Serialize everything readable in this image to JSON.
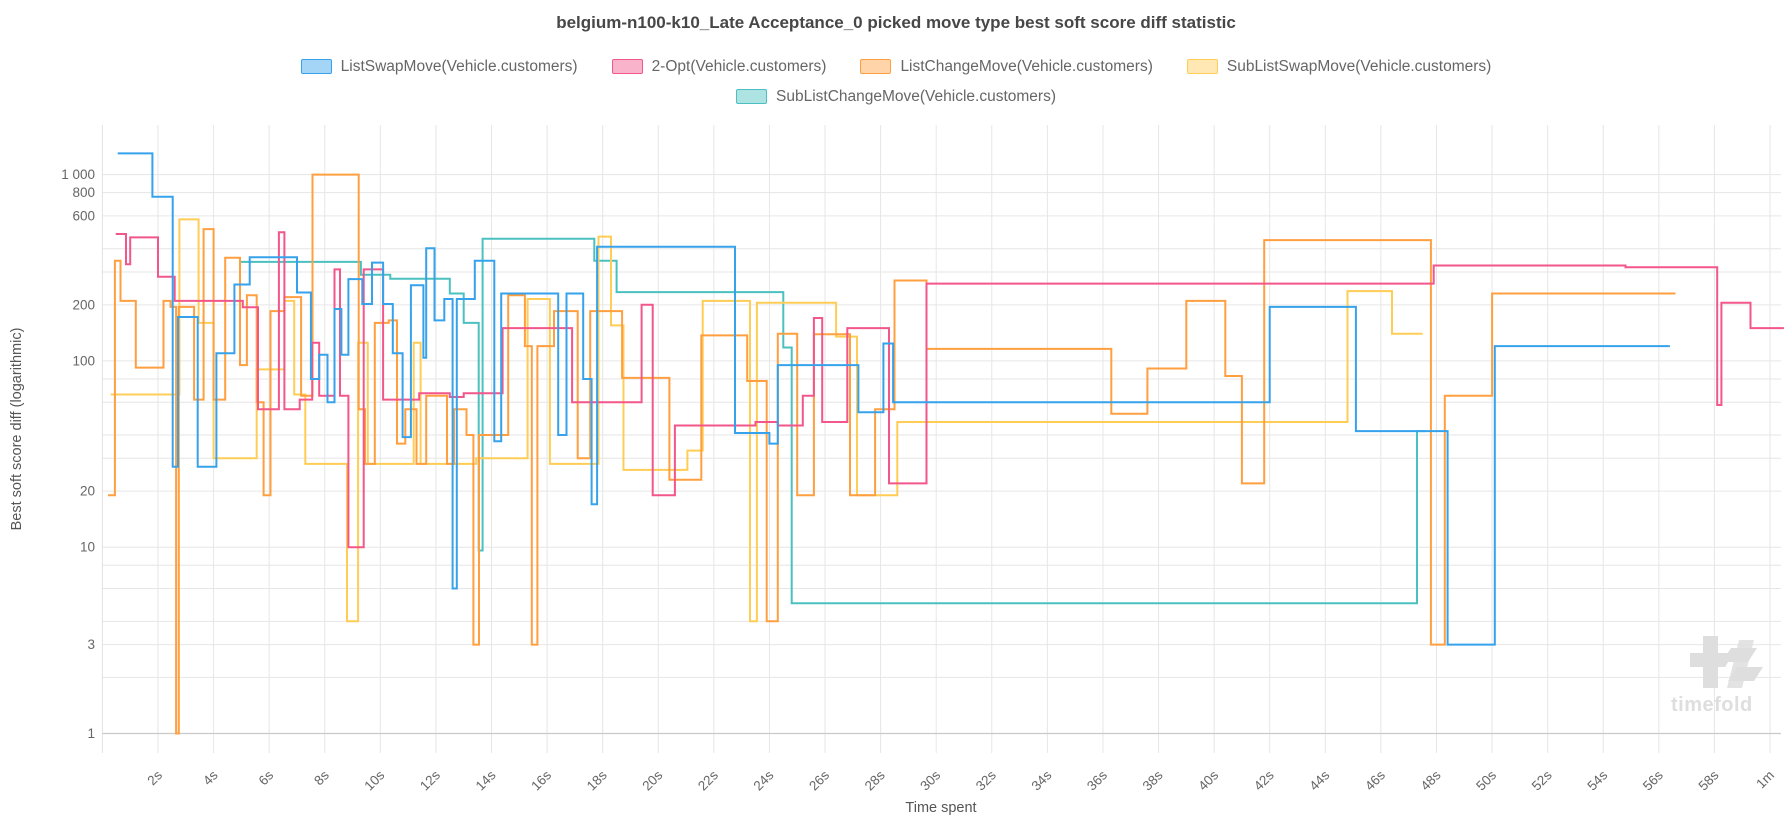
{
  "title": "belgium-n100-k10_Late Acceptance_0 picked move type best soft score diff statistic",
  "watermark": {
    "text": "timefold"
  },
  "axes": {
    "x": {
      "title": "Time spent",
      "ticks": [
        {
          "t": 2,
          "label": "2s"
        },
        {
          "t": 4,
          "label": "4s"
        },
        {
          "t": 6,
          "label": "6s"
        },
        {
          "t": 8,
          "label": "8s"
        },
        {
          "t": 10,
          "label": "10s"
        },
        {
          "t": 12,
          "label": "12s"
        },
        {
          "t": 14,
          "label": "14s"
        },
        {
          "t": 16,
          "label": "16s"
        },
        {
          "t": 18,
          "label": "18s"
        },
        {
          "t": 20,
          "label": "20s"
        },
        {
          "t": 22,
          "label": "22s"
        },
        {
          "t": 24,
          "label": "24s"
        },
        {
          "t": 26,
          "label": "26s"
        },
        {
          "t": 28,
          "label": "28s"
        },
        {
          "t": 30,
          "label": "30s"
        },
        {
          "t": 32,
          "label": "32s"
        },
        {
          "t": 34,
          "label": "34s"
        },
        {
          "t": 36,
          "label": "36s"
        },
        {
          "t": 38,
          "label": "38s"
        },
        {
          "t": 40,
          "label": "40s"
        },
        {
          "t": 42,
          "label": "42s"
        },
        {
          "t": 44,
          "label": "44s"
        },
        {
          "t": 46,
          "label": "46s"
        },
        {
          "t": 48,
          "label": "48s"
        },
        {
          "t": 50,
          "label": "50s"
        },
        {
          "t": 52,
          "label": "52s"
        },
        {
          "t": 54,
          "label": "54s"
        },
        {
          "t": 56,
          "label": "56s"
        },
        {
          "t": 58,
          "label": "58s"
        },
        {
          "t": 60,
          "label": "1m"
        }
      ]
    },
    "y": {
      "title": "Best soft score diff (logarithmic)",
      "scale": "log",
      "labeled_ticks": [
        {
          "v": 1000,
          "label": "1 000"
        },
        {
          "v": 800,
          "label": "800"
        },
        {
          "v": 600,
          "label": "600"
        },
        {
          "v": 200,
          "label": "200"
        },
        {
          "v": 100,
          "label": "100"
        },
        {
          "v": 20,
          "label": "20"
        },
        {
          "v": 10,
          "label": "10"
        },
        {
          "v": 3,
          "label": "3"
        },
        {
          "v": 1,
          "label": "1"
        }
      ],
      "unlabeled_gridlines": [
        400,
        300,
        80,
        60,
        40,
        30,
        8,
        6,
        4,
        2
      ]
    }
  },
  "legend": {
    "items": [
      {
        "label": "ListSwapMove(Vehicle.customers)",
        "color": "#36A2EB",
        "fill": "rgba(54,162,235,0.45)"
      },
      {
        "label": "2-Opt(Vehicle.customers)",
        "color": "#F2568A",
        "fill": "rgba(242,86,138,0.45)"
      },
      {
        "label": "ListChangeMove(Vehicle.customers)",
        "color": "#FF9F40",
        "fill": "rgba(255,159,64,0.45)"
      },
      {
        "label": "SubListSwapMove(Vehicle.customers)",
        "color": "#FFCD56",
        "fill": "rgba(255,205,86,0.45)"
      },
      {
        "label": "SubListChangeMove(Vehicle.customers)",
        "color": "#4BC0C0",
        "fill": "rgba(75,192,192,0.45)"
      }
    ]
  },
  "chart_data": {
    "type": "line",
    "step": "after",
    "title": "belgium-n100-k10_Late Acceptance_0 picked move type best soft score diff statistic",
    "xlabel": "Time spent",
    "ylabel": "Best soft score diff (logarithmic)",
    "x_unit": "seconds",
    "xlim": [
      0,
      60.5
    ],
    "ylim": [
      1,
      1833
    ],
    "grid": true,
    "legend_position": "top",
    "series": [
      {
        "name": "ListSwapMove(Vehicle.customers)",
        "color": "#36A2EB",
        "points": [
          [
            0.55,
            1300
          ],
          [
            1.8,
            760
          ],
          [
            2.53,
            27
          ],
          [
            2.72,
            172
          ],
          [
            3.43,
            27
          ],
          [
            4.1,
            110
          ],
          [
            4.75,
            257
          ],
          [
            5.3,
            360
          ],
          [
            7.0,
            233
          ],
          [
            7.5,
            80
          ],
          [
            7.8,
            108
          ],
          [
            8.1,
            60
          ],
          [
            8.35,
            190
          ],
          [
            8.6,
            108
          ],
          [
            8.85,
            275
          ],
          [
            9.35,
            202
          ],
          [
            9.7,
            337
          ],
          [
            10.1,
            202
          ],
          [
            10.45,
            110
          ],
          [
            10.8,
            39
          ],
          [
            11.1,
            255
          ],
          [
            11.55,
            104
          ],
          [
            11.65,
            402
          ],
          [
            11.95,
            165
          ],
          [
            12.3,
            215
          ],
          [
            12.6,
            6
          ],
          [
            12.75,
            215
          ],
          [
            13.4,
            345
          ],
          [
            14.1,
            37
          ],
          [
            14.35,
            230
          ],
          [
            16.4,
            40
          ],
          [
            16.7,
            230
          ],
          [
            17.3,
            80
          ],
          [
            17.6,
            17
          ],
          [
            17.8,
            410
          ],
          [
            22.76,
            41
          ],
          [
            24.0,
            36
          ],
          [
            24.3,
            95
          ],
          [
            27.2,
            53
          ],
          [
            28.1,
            124
          ],
          [
            28.45,
            60
          ],
          [
            42.0,
            195
          ],
          [
            45.1,
            42
          ],
          [
            48.4,
            3
          ],
          [
            50.1,
            120
          ],
          [
            56.4,
            120
          ]
        ]
      },
      {
        "name": "2-Opt(Vehicle.customers)",
        "color": "#F2568A",
        "points": [
          [
            0.48,
            480
          ],
          [
            0.85,
            330
          ],
          [
            1.0,
            460
          ],
          [
            2.0,
            283
          ],
          [
            2.6,
            210
          ],
          [
            5.05,
            194
          ],
          [
            5.6,
            55
          ],
          [
            6.35,
            490
          ],
          [
            6.55,
            55
          ],
          [
            7.1,
            62
          ],
          [
            7.55,
            125
          ],
          [
            7.8,
            65
          ],
          [
            8.35,
            310
          ],
          [
            8.55,
            65
          ],
          [
            8.85,
            10
          ],
          [
            9.4,
            310
          ],
          [
            10.1,
            62
          ],
          [
            11.4,
            67
          ],
          [
            12.5,
            64
          ],
          [
            13.0,
            67
          ],
          [
            14.4,
            150
          ],
          [
            16.9,
            60
          ],
          [
            19.4,
            200
          ],
          [
            19.8,
            19
          ],
          [
            20.6,
            45
          ],
          [
            23.5,
            47
          ],
          [
            24.3,
            45
          ],
          [
            25.2,
            65
          ],
          [
            25.6,
            170
          ],
          [
            25.9,
            47
          ],
          [
            26.8,
            150
          ],
          [
            28.3,
            22
          ],
          [
            29.65,
            260
          ],
          [
            47.9,
            325
          ],
          [
            54.8,
            318
          ],
          [
            58.1,
            58
          ],
          [
            58.25,
            205
          ],
          [
            59.3,
            150
          ],
          [
            60.5,
            150
          ]
        ]
      },
      {
        "name": "ListChangeMove(Vehicle.customers)",
        "color": "#FF9F40",
        "points": [
          [
            0.2,
            19
          ],
          [
            0.45,
            345
          ],
          [
            0.65,
            210
          ],
          [
            1.2,
            92
          ],
          [
            2.2,
            210
          ],
          [
            2.45,
            195
          ],
          [
            2.65,
            1
          ],
          [
            2.75,
            195
          ],
          [
            3.3,
            62
          ],
          [
            3.64,
            510
          ],
          [
            4.0,
            62
          ],
          [
            4.42,
            358
          ],
          [
            4.95,
            95
          ],
          [
            5.2,
            225
          ],
          [
            5.55,
            60
          ],
          [
            5.8,
            19
          ],
          [
            6.05,
            185
          ],
          [
            6.55,
            220
          ],
          [
            7.15,
            65
          ],
          [
            7.56,
            1000
          ],
          [
            9.22,
            55
          ],
          [
            9.45,
            28
          ],
          [
            9.8,
            160
          ],
          [
            10.3,
            165
          ],
          [
            10.6,
            36
          ],
          [
            10.9,
            55
          ],
          [
            11.3,
            28
          ],
          [
            11.65,
            65
          ],
          [
            12.4,
            28
          ],
          [
            12.65,
            55
          ],
          [
            13.1,
            40
          ],
          [
            13.35,
            3
          ],
          [
            13.55,
            40
          ],
          [
            14.6,
            225
          ],
          [
            15.2,
            120
          ],
          [
            15.45,
            3
          ],
          [
            15.65,
            120
          ],
          [
            16.25,
            185
          ],
          [
            17.1,
            30
          ],
          [
            17.55,
            185
          ],
          [
            18.7,
            81
          ],
          [
            20.4,
            23
          ],
          [
            21.55,
            137
          ],
          [
            23.2,
            78
          ],
          [
            23.9,
            4
          ],
          [
            24.3,
            140
          ],
          [
            25.0,
            19
          ],
          [
            25.6,
            139
          ],
          [
            26.9,
            19
          ],
          [
            27.8,
            55
          ],
          [
            28.5,
            270
          ],
          [
            29.65,
            116
          ],
          [
            36.3,
            52
          ],
          [
            37.6,
            91
          ],
          [
            39.0,
            210
          ],
          [
            40.4,
            83
          ],
          [
            41.0,
            22
          ],
          [
            41.8,
            445
          ],
          [
            47.8,
            3
          ],
          [
            48.3,
            65
          ],
          [
            50.0,
            230
          ],
          [
            56.6,
            230
          ]
        ]
      },
      {
        "name": "SubListSwapMove(Vehicle.customers)",
        "color": "#FFCD56",
        "points": [
          [
            0.3,
            66
          ],
          [
            2.77,
            575
          ],
          [
            3.46,
            160
          ],
          [
            4.0,
            30
          ],
          [
            5.55,
            90
          ],
          [
            6.55,
            210
          ],
          [
            6.9,
            66
          ],
          [
            7.3,
            28
          ],
          [
            8.8,
            4
          ],
          [
            9.2,
            125
          ],
          [
            9.55,
            28
          ],
          [
            11.2,
            125
          ],
          [
            11.45,
            28
          ],
          [
            13.45,
            30
          ],
          [
            15.3,
            215
          ],
          [
            16.1,
            28
          ],
          [
            17.85,
            465
          ],
          [
            18.3,
            155
          ],
          [
            18.75,
            26
          ],
          [
            21.05,
            33
          ],
          [
            21.6,
            210
          ],
          [
            23.3,
            4
          ],
          [
            23.55,
            205
          ],
          [
            26.4,
            135
          ],
          [
            27.15,
            19
          ],
          [
            28.6,
            47
          ],
          [
            44.8,
            237
          ],
          [
            46.4,
            140
          ],
          [
            47.5,
            140
          ]
        ]
      },
      {
        "name": "SubListChangeMove(Vehicle.customers)",
        "color": "#4BC0C0",
        "points": [
          [
            4.96,
            340
          ],
          [
            9.3,
            290
          ],
          [
            10.36,
            276
          ],
          [
            12.5,
            230
          ],
          [
            13.0,
            160
          ],
          [
            13.54,
            9.6
          ],
          [
            13.68,
            452
          ],
          [
            17.7,
            345
          ],
          [
            18.5,
            234
          ],
          [
            24.5,
            118
          ],
          [
            24.8,
            5
          ],
          [
            47.3,
            42
          ],
          [
            47.6,
            42
          ]
        ]
      }
    ]
  }
}
